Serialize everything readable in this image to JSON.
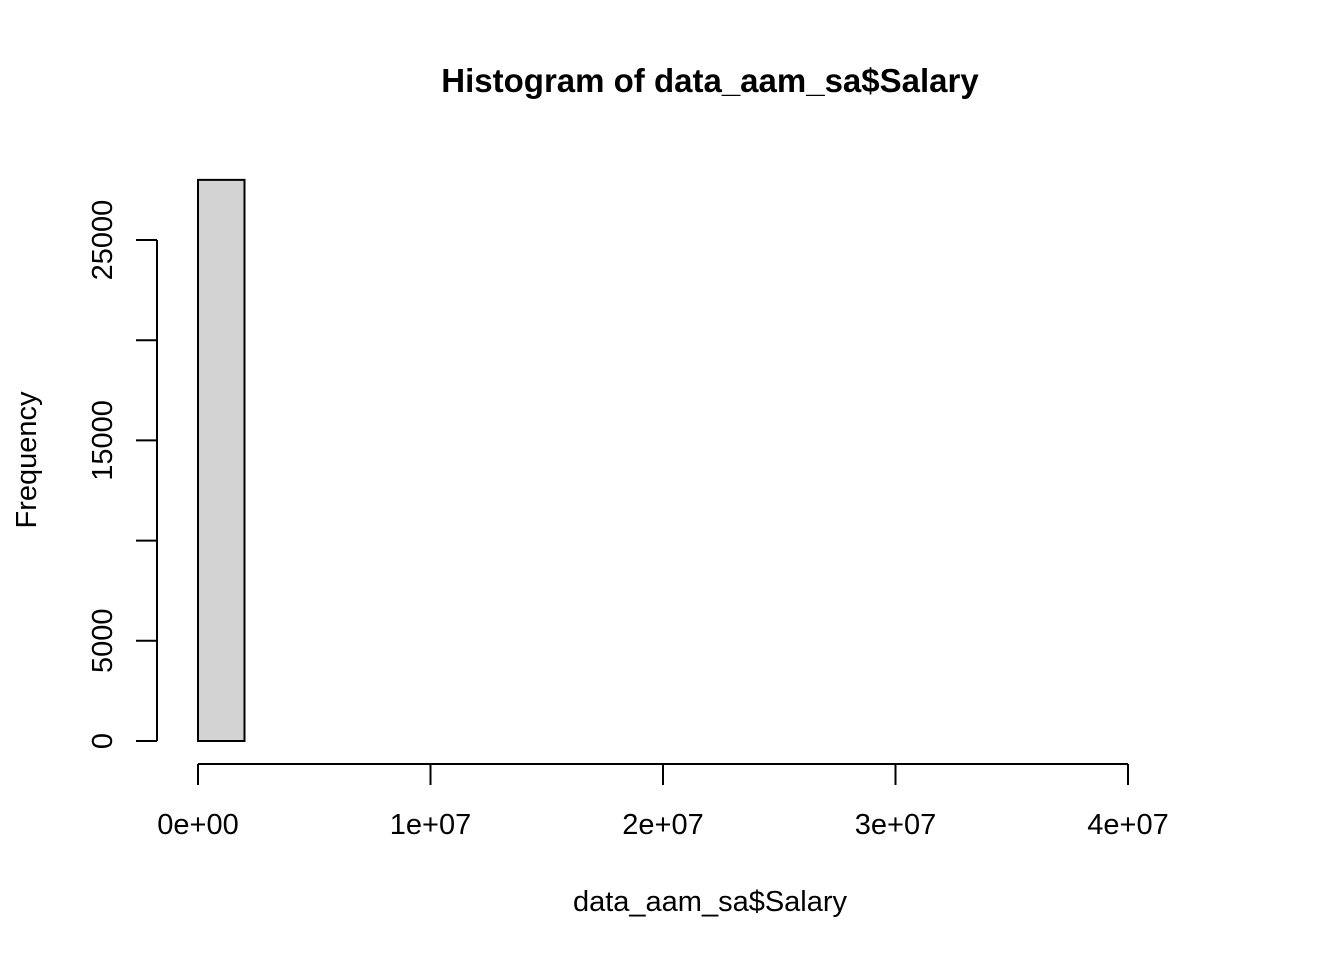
{
  "chart_data": {
    "type": "bar",
    "title": "Histogram of data_aam_sa$Salary",
    "xlabel": "data_aam_sa$Salary",
    "ylabel": "Frequency",
    "xlim": [
      0,
      44000000
    ],
    "ylim": [
      0,
      28000
    ],
    "x_ticks": [
      0,
      10000000,
      20000000,
      30000000,
      40000000
    ],
    "x_tick_labels": [
      "0e+00",
      "1e+07",
      "2e+07",
      "3e+07",
      "4e+07"
    ],
    "y_ticks": [
      0,
      5000,
      10000,
      15000,
      20000,
      25000
    ],
    "y_tick_labels": [
      "0",
      "5000",
      "",
      "15000",
      "",
      "25000"
    ],
    "bin_width": 2000000,
    "bins": [
      {
        "start": 0,
        "end": 2000000,
        "count": 28000
      },
      {
        "start": 2000000,
        "end": 4000000,
        "count": 0
      },
      {
        "start": 4000000,
        "end": 6000000,
        "count": 0
      },
      {
        "start": 6000000,
        "end": 8000000,
        "count": 0
      },
      {
        "start": 8000000,
        "end": 10000000,
        "count": 0
      },
      {
        "start": 10000000,
        "end": 12000000,
        "count": 0
      },
      {
        "start": 12000000,
        "end": 14000000,
        "count": 0
      },
      {
        "start": 14000000,
        "end": 16000000,
        "count": 0
      },
      {
        "start": 16000000,
        "end": 18000000,
        "count": 0
      },
      {
        "start": 18000000,
        "end": 20000000,
        "count": 0
      },
      {
        "start": 20000000,
        "end": 22000000,
        "count": 0
      },
      {
        "start": 22000000,
        "end": 24000000,
        "count": 0
      },
      {
        "start": 24000000,
        "end": 26000000,
        "count": 0
      },
      {
        "start": 26000000,
        "end": 28000000,
        "count": 0
      },
      {
        "start": 28000000,
        "end": 30000000,
        "count": 0
      },
      {
        "start": 30000000,
        "end": 32000000,
        "count": 0
      },
      {
        "start": 32000000,
        "end": 34000000,
        "count": 0
      },
      {
        "start": 34000000,
        "end": 36000000,
        "count": 0
      },
      {
        "start": 36000000,
        "end": 38000000,
        "count": 0
      },
      {
        "start": 38000000,
        "end": 40000000,
        "count": 0
      },
      {
        "start": 40000000,
        "end": 42000000,
        "count": 0
      },
      {
        "start": 42000000,
        "end": 44000000,
        "count": 0
      }
    ],
    "bar_color": "#d3d3d3",
    "border_color": "#000000",
    "grid": false
  }
}
